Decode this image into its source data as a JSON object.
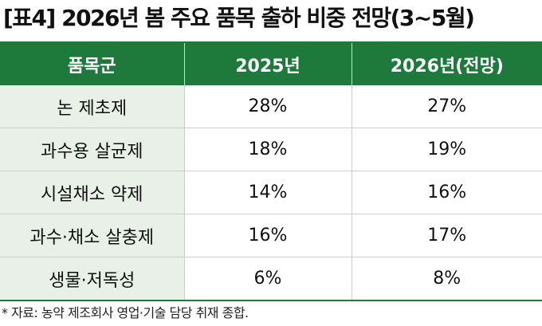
{
  "title": "[표4] 2026년 봄 주요 품목 출하 비중 전망(3~5월)",
  "table": {
    "headers": [
      "품목군",
      "2025년",
      "2026년(전망)"
    ],
    "rows": [
      [
        "논 제초제",
        "28%",
        "27%"
      ],
      [
        "과수용 살균제",
        "18%",
        "19%"
      ],
      [
        "시설채소 약제",
        "14%",
        "16%"
      ],
      [
        "과수·채소 살충제",
        "16%",
        "17%"
      ],
      [
        "생물·저독성",
        "6%",
        "8%"
      ]
    ]
  },
  "footnote": "* 자료: 농약 제조회사 영업·기술 담당 취재 종합.",
  "colors": {
    "header_bg": "#1e7a3b",
    "header_text": "#ffffff",
    "first_col_bg": "#e8f0e7",
    "grid_line": "#c9d1c9"
  }
}
